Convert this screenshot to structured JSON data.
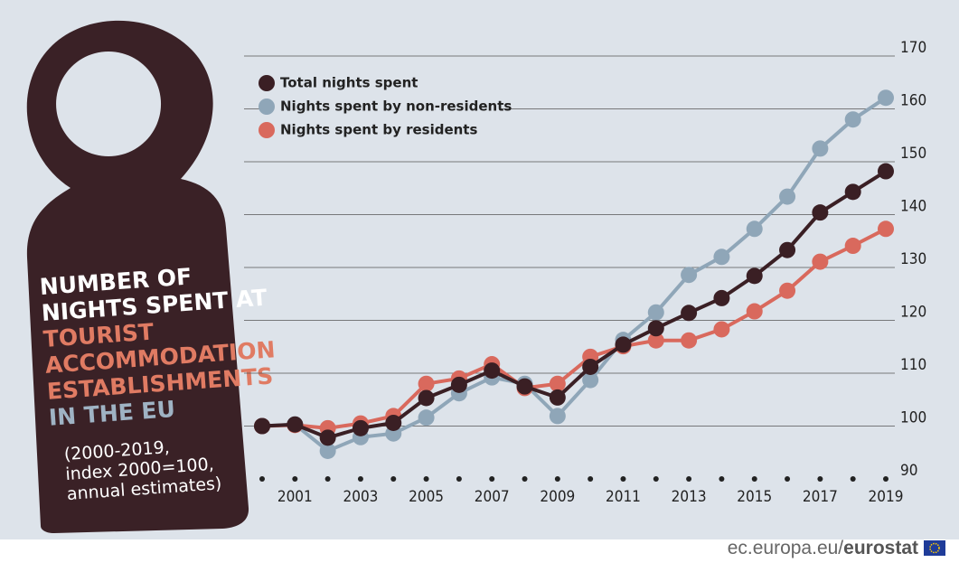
{
  "chart_data": {
    "type": "line",
    "title": [
      "NUMBER OF",
      "NIGHTS SPENT AT",
      "TOURIST",
      "ACCOMMODATION",
      "ESTABLISHMENTS",
      "IN THE EU"
    ],
    "subtitle": [
      "(2000-2019,",
      "index 2000=100,",
      "annual estimates)"
    ],
    "x": [
      2000,
      2001,
      2002,
      2003,
      2004,
      2005,
      2006,
      2007,
      2008,
      2009,
      2010,
      2011,
      2012,
      2013,
      2014,
      2015,
      2016,
      2017,
      2018,
      2019
    ],
    "xlim": [
      2000,
      2019
    ],
    "xticks": [
      2001,
      2003,
      2005,
      2007,
      2009,
      2011,
      2013,
      2015,
      2017,
      2019
    ],
    "ylim": [
      90,
      170
    ],
    "yticks": [
      90,
      100,
      110,
      120,
      130,
      140,
      150,
      160,
      170
    ],
    "grid": true,
    "series": [
      {
        "name": "Total nights spent",
        "color": "#3a1f24",
        "values": [
          100,
          100.3,
          97.8,
          99.6,
          100.6,
          105.3,
          107.8,
          110.5,
          107.5,
          105.4,
          111.2,
          115.4,
          118.5,
          121.4,
          124.2,
          128.4,
          133.3,
          140.4,
          144.3,
          148.2
        ]
      },
      {
        "name": "Nights spent by non-residents",
        "color": "#8fa6b8",
        "values": [
          100,
          100.3,
          95.3,
          97.9,
          98.6,
          101.6,
          106.2,
          109.2,
          108,
          101.9,
          108.7,
          116.3,
          121.5,
          128.6,
          132,
          137.3,
          143.4,
          152.5,
          158,
          162.1
        ]
      },
      {
        "name": "Nights spent by residents",
        "color": "#d9695d",
        "values": [
          100,
          100.2,
          99.6,
          100.5,
          101.9,
          108,
          109,
          111.7,
          107.2,
          108,
          113.1,
          115.1,
          116.2,
          116.2,
          118.3,
          121.7,
          125.6,
          131.1,
          134.1,
          137.3
        ]
      }
    ],
    "source": [
      "ec.europa.eu/",
      "eurostat"
    ]
  }
}
